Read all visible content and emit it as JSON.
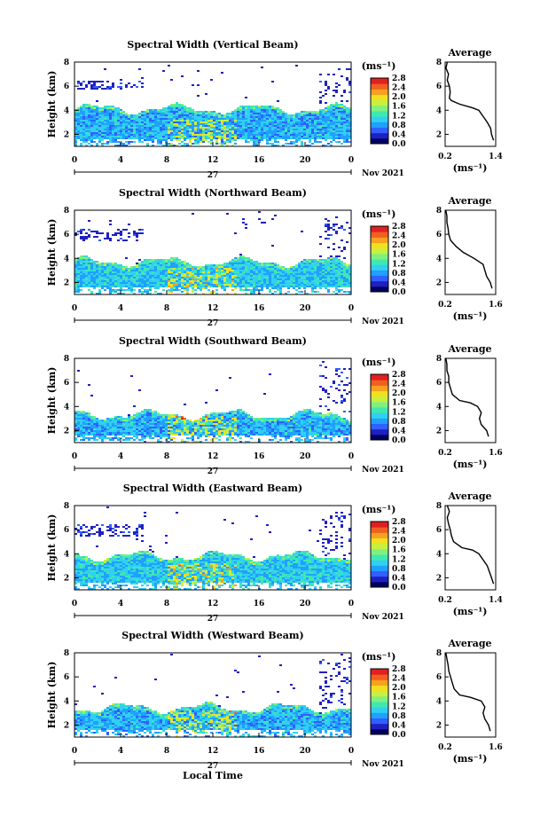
{
  "figure": {
    "xlabel": "Local Time",
    "date_label": "Nov 2021",
    "day_label": "27",
    "time_ticks": [
      "0",
      "4",
      "8",
      "12",
      "16",
      "20",
      "0"
    ],
    "height_ticks": [
      "2",
      "4",
      "6",
      "8"
    ],
    "ylabel": "Height (km)",
    "colorbar_title": "(ms⁻¹)",
    "colorbar_ticks_a": [
      "0.0",
      "0.4",
      "0.8",
      "1.2",
      "1.6",
      "2.0",
      "2.4",
      "2.8"
    ],
    "colorbar_ticks_b": [
      "0.0",
      "0.4",
      "0.8",
      "1.2",
      "1.6",
      "2.0",
      "2.4",
      "2.8"
    ],
    "profile_title": "Average",
    "profile_xlabel": "(ms⁻¹)",
    "colormap": [
      "#000060",
      "#2020c0",
      "#3060ff",
      "#20a0ff",
      "#30d0f0",
      "#40e8b0",
      "#80f080",
      "#c8f040",
      "#f0e020",
      "#f8a020",
      "#f06020",
      "#e02020"
    ]
  },
  "chart_data": [
    {
      "type": "heatmap",
      "title": "Spectral Width (Vertical Beam)",
      "xlabel": "Local Time",
      "ylabel": "Height (km)",
      "x_range_hours": [
        0,
        24
      ],
      "y_range_km": [
        1,
        8
      ],
      "colorbar_range": [
        0.0,
        2.8
      ],
      "description_values": {
        "boundary_layer_top_km": 4.2,
        "elevated_layer_km": [
          5.8,
          6.6
        ],
        "typical_width": 0.9
      },
      "profile": {
        "title": "Average",
        "xlim": [
          0.2,
          1.4
        ],
        "xticks": [
          "0.2",
          "1.4"
        ],
        "xlabel": "(ms⁻¹)",
        "heights_km": [
          1.5,
          2.0,
          2.5,
          3.0,
          3.5,
          4.0,
          4.2,
          4.5,
          4.8,
          5.0,
          5.5,
          6.0,
          6.5,
          7.0,
          7.5,
          8.0
        ],
        "values": [
          1.35,
          1.3,
          1.28,
          1.2,
          1.1,
          1.0,
          0.85,
          0.55,
          0.35,
          0.3,
          0.32,
          0.3,
          0.25,
          0.28,
          0.22,
          0.25
        ]
      }
    },
    {
      "type": "heatmap",
      "title": "Spectral Width (Northward Beam)",
      "xlabel": "Local Time",
      "ylabel": "Height (km)",
      "x_range_hours": [
        0,
        24
      ],
      "y_range_km": [
        1,
        8
      ],
      "colorbar_range": [
        0.0,
        2.8
      ],
      "description_values": {
        "boundary_layer_top_km": 3.8,
        "elevated_layer_km": [
          5.5,
          6.5
        ],
        "typical_width": 1.0
      },
      "profile": {
        "title": "Average",
        "xlim": [
          0.2,
          1.6
        ],
        "xticks": [
          "0.2",
          "1.6"
        ],
        "xlabel": "(ms⁻¹)",
        "heights_km": [
          1.5,
          2.0,
          2.5,
          3.0,
          3.5,
          4.0,
          4.5,
          5.0,
          5.5,
          6.0,
          6.5,
          7.0,
          7.5,
          8.0
        ],
        "values": [
          1.5,
          1.45,
          1.35,
          1.3,
          1.25,
          1.0,
          0.7,
          0.5,
          0.35,
          0.3,
          0.28,
          0.25,
          0.25,
          0.22
        ]
      }
    },
    {
      "type": "heatmap",
      "title": "Spectral Width (Southward Beam)",
      "xlabel": "Local Time",
      "ylabel": "Height (km)",
      "x_range_hours": [
        0,
        24
      ],
      "y_range_km": [
        1,
        8
      ],
      "colorbar_range": [
        0.0,
        2.8
      ],
      "description_values": {
        "boundary_layer_top_km": 3.4,
        "typical_width": 0.9
      },
      "profile": {
        "title": "Average",
        "xlim": [
          0.2,
          1.6
        ],
        "xticks": [
          "0.2",
          "1.6"
        ],
        "xlabel": "(ms⁻¹)",
        "heights_km": [
          1.5,
          2.0,
          2.5,
          3.0,
          3.5,
          4.0,
          4.3,
          4.5,
          5.0,
          5.5,
          6.0,
          6.5,
          7.0,
          7.5,
          8.0
        ],
        "values": [
          1.4,
          1.35,
          1.2,
          1.15,
          1.2,
          1.1,
          0.9,
          0.6,
          0.4,
          0.35,
          0.3,
          0.3,
          0.25,
          0.25,
          0.22
        ]
      }
    },
    {
      "type": "heatmap",
      "title": "Spectral Width (Eastward Beam)",
      "xlabel": "Local Time",
      "ylabel": "Height (km)",
      "x_range_hours": [
        0,
        24
      ],
      "y_range_km": [
        1,
        8
      ],
      "colorbar_range": [
        0.0,
        2.8
      ],
      "description_values": {
        "boundary_layer_top_km": 3.9,
        "elevated_layer_km": [
          5.5,
          6.5
        ],
        "typical_width": 1.0
      },
      "profile": {
        "title": "Average",
        "xlim": [
          0.2,
          1.4
        ],
        "xticks": [
          "0.2",
          "1.4"
        ],
        "xlabel": "(ms⁻¹)",
        "heights_km": [
          1.5,
          2.0,
          2.5,
          3.0,
          3.5,
          4.0,
          4.3,
          4.5,
          5.0,
          5.5,
          6.0,
          6.5,
          7.0,
          7.5,
          8.0
        ],
        "values": [
          1.35,
          1.3,
          1.25,
          1.2,
          1.1,
          1.0,
          0.85,
          0.6,
          0.4,
          0.35,
          0.32,
          0.28,
          0.25,
          0.3,
          0.25
        ]
      }
    },
    {
      "type": "heatmap",
      "title": "Spectral Width (Westward Beam)",
      "xlabel": "Local Time",
      "ylabel": "Height (km)",
      "x_range_hours": [
        0,
        24
      ],
      "y_range_km": [
        1,
        8
      ],
      "colorbar_range": [
        0.0,
        2.8
      ],
      "description_values": {
        "boundary_layer_top_km": 3.5,
        "typical_width": 0.9
      },
      "profile": {
        "title": "Average",
        "xlim": [
          0.2,
          1.6
        ],
        "xticks": [
          "0.2",
          "1.6"
        ],
        "xlabel": "(ms⁻¹)",
        "heights_km": [
          1.5,
          2.0,
          2.5,
          3.0,
          3.5,
          4.0,
          4.3,
          4.5,
          5.0,
          5.5,
          6.0,
          6.5,
          7.0,
          7.5,
          8.0
        ],
        "values": [
          1.45,
          1.4,
          1.3,
          1.25,
          1.3,
          1.2,
          0.9,
          0.6,
          0.45,
          0.4,
          0.35,
          0.3,
          0.28,
          0.25,
          0.22
        ]
      }
    }
  ]
}
